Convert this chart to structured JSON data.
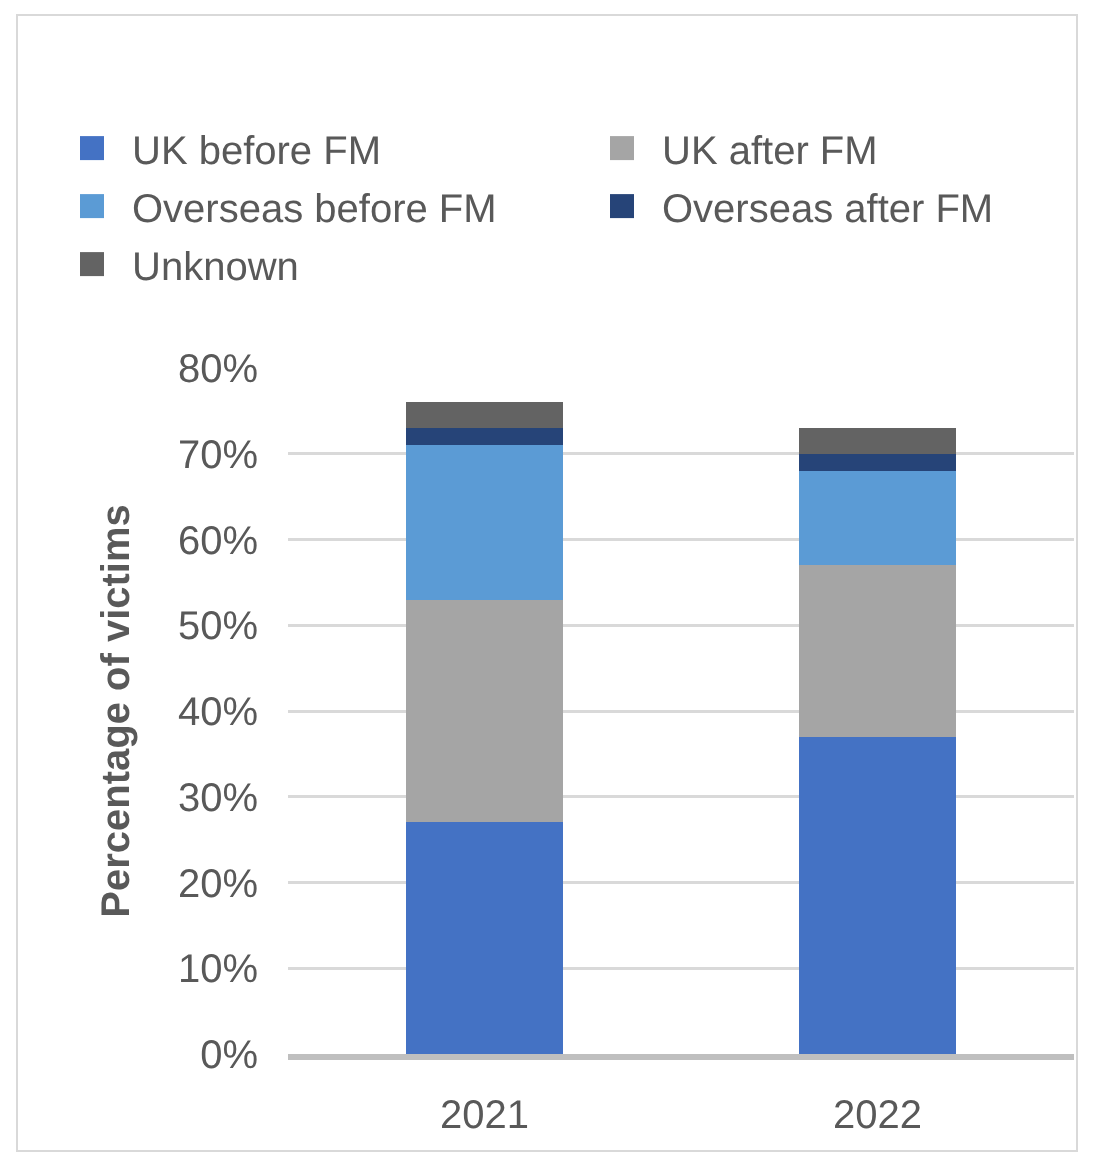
{
  "chart_data": {
    "type": "bar",
    "stacked": true,
    "ylabel": "Percentage of victims",
    "categories": [
      "2021",
      "2022"
    ],
    "series": [
      {
        "name": "UK before FM",
        "color": "#4472c4",
        "values": [
          27,
          37
        ]
      },
      {
        "name": "UK after FM",
        "color": "#a5a5a5",
        "values": [
          26,
          20
        ]
      },
      {
        "name": "Overseas before FM",
        "color": "#5b9bd5",
        "values": [
          18,
          11
        ]
      },
      {
        "name": "Overseas after FM",
        "color": "#264478",
        "values": [
          2,
          2
        ]
      },
      {
        "name": "Unknown",
        "color": "#636363",
        "values": [
          3,
          3
        ]
      }
    ],
    "ylim": [
      0,
      80
    ],
    "yticks": [
      {
        "value": 0,
        "label": "0%"
      },
      {
        "value": 10,
        "label": "10%"
      },
      {
        "value": 20,
        "label": "20%"
      },
      {
        "value": 30,
        "label": "30%"
      },
      {
        "value": 40,
        "label": "40%"
      },
      {
        "value": 50,
        "label": "50%"
      },
      {
        "value": 60,
        "label": "60%"
      },
      {
        "value": 70,
        "label": "70%"
      },
      {
        "value": 80,
        "label": "80%"
      }
    ],
    "grid": "y",
    "legend": "top"
  }
}
